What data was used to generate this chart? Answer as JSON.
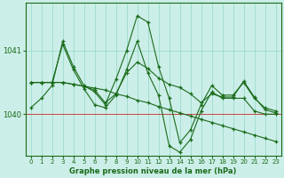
{
  "xlabel": "Graphe pression niveau de la mer (hPa)",
  "bg_color": "#cceee8",
  "grid_color": "#99ddcc",
  "line_color": "#1a6b1a",
  "xlim": [
    -0.5,
    23.5
  ],
  "ylim": [
    1039.35,
    1041.75
  ],
  "yticks": [
    1040,
    1041
  ],
  "xticks": [
    0,
    1,
    2,
    3,
    4,
    5,
    6,
    7,
    8,
    9,
    10,
    11,
    12,
    13,
    14,
    15,
    16,
    17,
    18,
    19,
    20,
    21,
    22,
    23
  ],
  "redline_y": 1040.0,
  "series": [
    [
      1040.1,
      1040.25,
      1040.45,
      1041.15,
      1040.75,
      1040.45,
      1040.35,
      1040.15,
      1040.55,
      1041.0,
      1041.55,
      1041.45,
      1040.75,
      1040.25,
      1039.55,
      1039.75,
      1040.15,
      1040.45,
      1040.3,
      1040.3,
      1040.5,
      1040.25,
      1040.1,
      1040.05
    ],
    [
      1040.5,
      1040.5,
      1040.5,
      1041.1,
      1040.7,
      1040.4,
      1040.15,
      1040.1,
      1040.3,
      1040.7,
      1041.15,
      1040.65,
      1040.3,
      1039.5,
      1039.4,
      1039.6,
      1040.05,
      1040.35,
      1040.25,
      1040.25,
      1040.25,
      1040.05,
      1040.0,
      1040.0
    ],
    [
      1040.5,
      1040.5,
      1040.5,
      1040.5,
      1040.47,
      1040.44,
      1040.41,
      1040.38,
      1040.32,
      1040.28,
      1040.22,
      1040.18,
      1040.12,
      1040.07,
      1040.02,
      1039.97,
      1039.92,
      1039.87,
      1039.82,
      1039.77,
      1039.72,
      1039.67,
      1039.62,
      1039.57
    ],
    [
      1040.5,
      1040.5,
      1040.5,
      1040.5,
      1040.47,
      1040.44,
      1040.38,
      1040.18,
      1040.32,
      1040.65,
      1040.82,
      1040.72,
      1040.57,
      1040.47,
      1040.42,
      1040.32,
      1040.18,
      1040.32,
      1040.27,
      1040.27,
      1040.52,
      1040.27,
      1040.07,
      1040.02
    ]
  ]
}
